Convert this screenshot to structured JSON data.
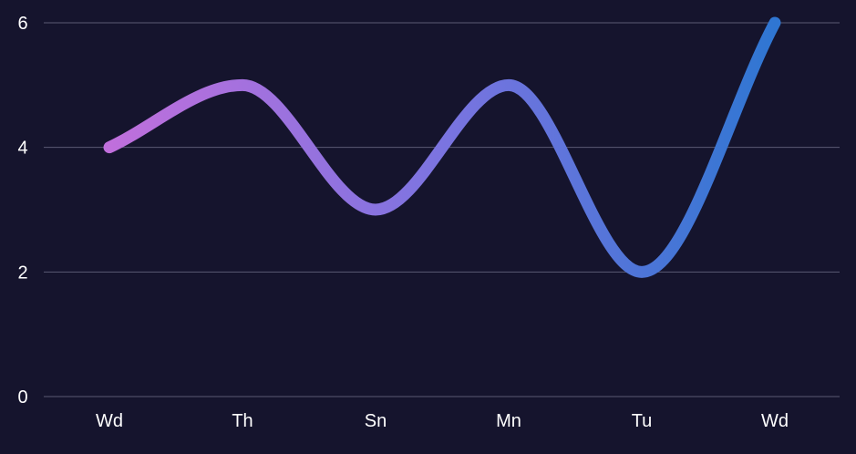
{
  "chart_data": {
    "type": "line",
    "title": "",
    "xlabel": "",
    "ylabel": "",
    "categories": [
      "Wd",
      "Th",
      "Sn",
      "Mn",
      "Tu",
      "Wd"
    ],
    "series": [
      {
        "values": [
          4,
          5,
          3,
          5,
          2,
          6
        ]
      }
    ],
    "ylim": [
      0,
      6
    ],
    "yticks": [
      "0",
      "2",
      "4",
      "6"
    ],
    "grid": true,
    "smooth": true,
    "legend": "none",
    "colors": {
      "background": "#15142d",
      "gridline": "#5a5a73",
      "tick_label": "#ffffff",
      "line_start": "#c06fdc",
      "line_mid": "#7b74e0",
      "line_end": "#2f76d2"
    }
  }
}
